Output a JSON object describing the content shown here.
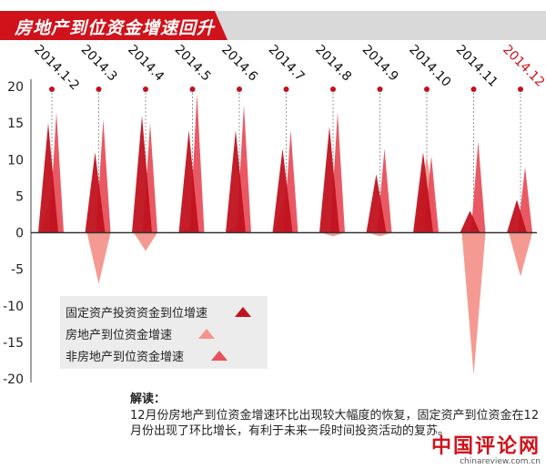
{
  "header": {
    "title": "房地产到位资金增速回升"
  },
  "legend": {
    "items": [
      {
        "label": "固定资产投资资金到位增速",
        "color": "#c0121e"
      },
      {
        "label": "房地产到位资金增速",
        "color": "#f4958c"
      },
      {
        "label": "非房地产到位资金增速",
        "color": "#e8505c"
      }
    ]
  },
  "note": {
    "heading": "解读：",
    "text": "12月份房地产到位资金增速环比出现较大幅度的恢复，固定资产到位资金在12月份出现了环比增长，有利于未来一段时间投资活动的复苏。"
  },
  "logo": {
    "main": "中国评论网",
    "url": "chinareview.com.cn"
  },
  "colors": {
    "banner": "#d0121b",
    "highlight_label": "#d0121b"
  },
  "chart_data": {
    "type": "area",
    "categories": [
      "2014.1-2",
      "2014.3",
      "2014.4",
      "2014.5",
      "2014.6",
      "2014.7",
      "2014.8",
      "2014.9",
      "2014.10",
      "2014.11",
      "2014.12"
    ],
    "highlight_category": "2014.12",
    "series": [
      {
        "name": "固定资产投资资金到位增速",
        "values": [
          15,
          11,
          16,
          14,
          14,
          11.5,
          14.5,
          8,
          11,
          3,
          4.5
        ]
      },
      {
        "name": "房地产到位资金增速",
        "values": [
          5,
          -7,
          -2.5,
          1,
          1.5,
          6,
          -0.5,
          -0.5,
          10.5,
          -19.5,
          -6
        ]
      },
      {
        "name": "非房地产到位资金增速",
        "values": [
          16.5,
          15.5,
          15,
          19,
          17.5,
          14,
          16.5,
          11.5,
          10.5,
          12.5,
          9
        ]
      }
    ],
    "yticks": [
      20,
      15,
      10,
      5,
      0,
      -5,
      -10,
      -15,
      -20
    ],
    "ylim": [
      -20,
      20
    ],
    "legend_position": "bottom-left",
    "grid": false
  }
}
